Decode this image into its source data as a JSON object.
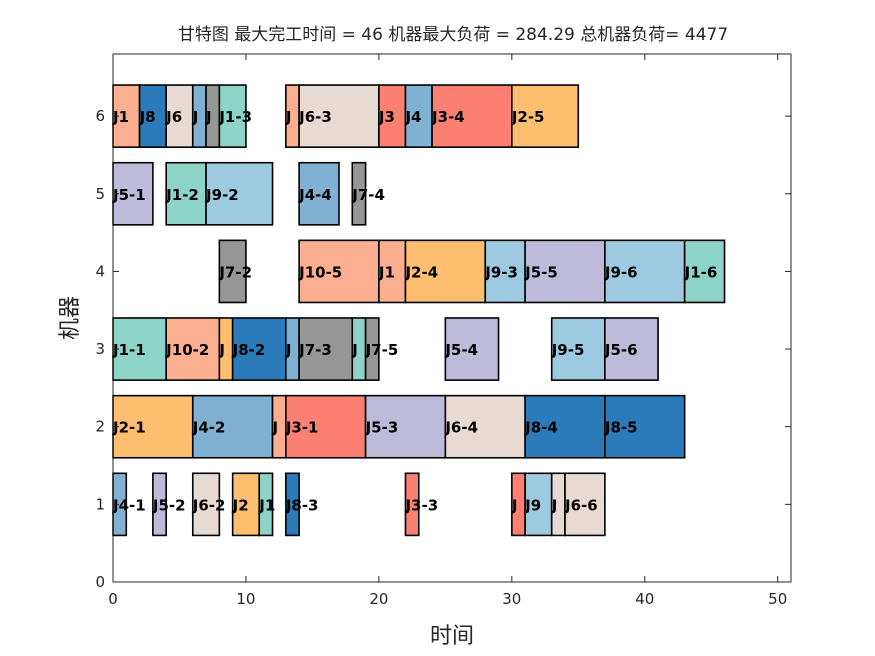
{
  "chart_data": {
    "type": "gantt",
    "title": "甘特图 最大完工时间 = 46 机器最大负荷 = 284.29 总机器负荷= 4477",
    "xlabel": "时间",
    "ylabel": "机器",
    "xlim": [
      0,
      51
    ],
    "ylim": [
      0,
      6.8
    ],
    "xticks": [
      "0",
      "10",
      "20",
      "30",
      "40",
      "50"
    ],
    "xtick_values": [
      0,
      10,
      20,
      30,
      40,
      50
    ],
    "yticks": [
      "0",
      "1",
      "2",
      "3",
      "4",
      "5",
      "6"
    ],
    "ytick_values": [
      0,
      1,
      2,
      3,
      4,
      5,
      6
    ],
    "grid": false,
    "job_colors": {
      "J1": "#8DD3C7",
      "J2": "#FDBF6F",
      "J3": "#FB8072",
      "J4": "#80B1D3",
      "J5": "#BEBADA",
      "J6": "#E6DAD2",
      "J7": "#969696",
      "J8": "#2B7BBA",
      "J9": "#9ECAE1",
      "J10": "#FCAE91"
    },
    "tasks": [
      {
        "machine": 1,
        "start": 0,
        "end": 1,
        "job": "J4",
        "label": "J4-1"
      },
      {
        "machine": 1,
        "start": 3,
        "end": 4,
        "job": "J5",
        "label": "J5-2"
      },
      {
        "machine": 1,
        "start": 6,
        "end": 8,
        "job": "J6",
        "label": "J6-2"
      },
      {
        "machine": 1,
        "start": 9,
        "end": 11,
        "job": "J2",
        "label": "J2"
      },
      {
        "machine": 1,
        "start": 11,
        "end": 12,
        "job": "J1",
        "label": "J1"
      },
      {
        "machine": 1,
        "start": 13,
        "end": 14,
        "job": "J8",
        "label": "J8-3"
      },
      {
        "machine": 1,
        "start": 22,
        "end": 23,
        "job": "J3",
        "label": "J3-3"
      },
      {
        "machine": 1,
        "start": 30,
        "end": 31,
        "job": "J3",
        "label": "J"
      },
      {
        "machine": 1,
        "start": 31,
        "end": 33,
        "job": "J9",
        "label": "J9"
      },
      {
        "machine": 1,
        "start": 33,
        "end": 34,
        "job": "J6",
        "label": "J"
      },
      {
        "machine": 1,
        "start": 34,
        "end": 37,
        "job": "J6",
        "label": "J6-6"
      },
      {
        "machine": 2,
        "start": 0,
        "end": 6,
        "job": "J2",
        "label": "J2-1"
      },
      {
        "machine": 2,
        "start": 6,
        "end": 12,
        "job": "J4",
        "label": "J4-2"
      },
      {
        "machine": 2,
        "start": 12,
        "end": 13,
        "job": "J10",
        "label": "J"
      },
      {
        "machine": 2,
        "start": 13,
        "end": 19,
        "job": "J3",
        "label": "J3-1"
      },
      {
        "machine": 2,
        "start": 19,
        "end": 25,
        "job": "J5",
        "label": "J5-3"
      },
      {
        "machine": 2,
        "start": 25,
        "end": 31,
        "job": "J6",
        "label": "J6-4"
      },
      {
        "machine": 2,
        "start": 31,
        "end": 37,
        "job": "J8",
        "label": "J8-4"
      },
      {
        "machine": 2,
        "start": 37,
        "end": 43,
        "job": "J8",
        "label": "J8-5"
      },
      {
        "machine": 3,
        "start": 0,
        "end": 4,
        "job": "J1",
        "label": "J1-1"
      },
      {
        "machine": 3,
        "start": 4,
        "end": 8,
        "job": "J10",
        "label": "J10-2"
      },
      {
        "machine": 3,
        "start": 8,
        "end": 9,
        "job": "J2",
        "label": "J"
      },
      {
        "machine": 3,
        "start": 9,
        "end": 13,
        "job": "J8",
        "label": "J8-2"
      },
      {
        "machine": 3,
        "start": 13,
        "end": 14,
        "job": "J4",
        "label": "J"
      },
      {
        "machine": 3,
        "start": 14,
        "end": 18,
        "job": "J7",
        "label": "J7-3"
      },
      {
        "machine": 3,
        "start": 18,
        "end": 19,
        "job": "J1",
        "label": "J"
      },
      {
        "machine": 3,
        "start": 19,
        "end": 20,
        "job": "J7",
        "label": "J7-5"
      },
      {
        "machine": 3,
        "start": 25,
        "end": 29,
        "job": "J5",
        "label": "J5-4"
      },
      {
        "machine": 3,
        "start": 33,
        "end": 37,
        "job": "J9",
        "label": "J9-5"
      },
      {
        "machine": 3,
        "start": 37,
        "end": 41,
        "job": "J5",
        "label": "J5-6"
      },
      {
        "machine": 4,
        "start": 8,
        "end": 10,
        "job": "J7",
        "label": "J7-2"
      },
      {
        "machine": 4,
        "start": 14,
        "end": 20,
        "job": "J10",
        "label": "J10-5"
      },
      {
        "machine": 4,
        "start": 20,
        "end": 22,
        "job": "J10",
        "label": "J1"
      },
      {
        "machine": 4,
        "start": 22,
        "end": 28,
        "job": "J2",
        "label": "J2-4"
      },
      {
        "machine": 4,
        "start": 28,
        "end": 31,
        "job": "J9",
        "label": "J9-3"
      },
      {
        "machine": 4,
        "start": 31,
        "end": 37,
        "job": "J5",
        "label": "J5-5"
      },
      {
        "machine": 4,
        "start": 37,
        "end": 43,
        "job": "J9",
        "label": "J9-6"
      },
      {
        "machine": 4,
        "start": 43,
        "end": 46,
        "job": "J1",
        "label": "J1-6"
      },
      {
        "machine": 5,
        "start": 0,
        "end": 3,
        "job": "J5",
        "label": "J5-1"
      },
      {
        "machine": 5,
        "start": 4,
        "end": 7,
        "job": "J1",
        "label": "J1-2"
      },
      {
        "machine": 5,
        "start": 7,
        "end": 12,
        "job": "J9",
        "label": "J9-2"
      },
      {
        "machine": 5,
        "start": 14,
        "end": 17,
        "job": "J4",
        "label": "J4-4"
      },
      {
        "machine": 5,
        "start": 18,
        "end": 19,
        "job": "J7",
        "label": "J7-4"
      },
      {
        "machine": 6,
        "start": 0,
        "end": 2,
        "job": "J10",
        "label": "J1"
      },
      {
        "machine": 6,
        "start": 2,
        "end": 4,
        "job": "J8",
        "label": "J8"
      },
      {
        "machine": 6,
        "start": 4,
        "end": 6,
        "job": "J6",
        "label": "J6"
      },
      {
        "machine": 6,
        "start": 6,
        "end": 7,
        "job": "J4",
        "label": "J"
      },
      {
        "machine": 6,
        "start": 7,
        "end": 8,
        "job": "J7",
        "label": "J"
      },
      {
        "machine": 6,
        "start": 8,
        "end": 10,
        "job": "J1",
        "label": "J1-3"
      },
      {
        "machine": 6,
        "start": 13,
        "end": 14,
        "job": "J10",
        "label": "J"
      },
      {
        "machine": 6,
        "start": 14,
        "end": 20,
        "job": "J6",
        "label": "J6-3"
      },
      {
        "machine": 6,
        "start": 20,
        "end": 22,
        "job": "J3",
        "label": "J3"
      },
      {
        "machine": 6,
        "start": 22,
        "end": 24,
        "job": "J4",
        "label": "J4"
      },
      {
        "machine": 6,
        "start": 24,
        "end": 30,
        "job": "J3",
        "label": "J3-4"
      },
      {
        "machine": 6,
        "start": 30,
        "end": 35,
        "job": "J2",
        "label": "J2-5"
      }
    ]
  }
}
